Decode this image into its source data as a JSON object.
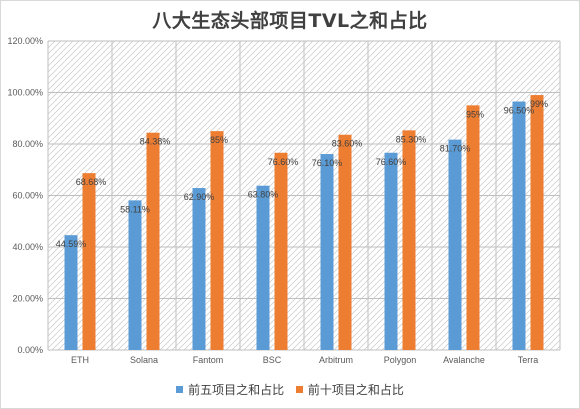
{
  "chart_data": {
    "type": "bar",
    "title": "八大生态头部项目TVL之和占比",
    "categories": [
      "ETH",
      "Solana",
      "Fantom",
      "BSC",
      "Arbitrum",
      "Polygon",
      "Avalanche",
      "Terra"
    ],
    "series": [
      {
        "name": "前五项目之和占比",
        "color": "#5b9bd5",
        "values": [
          44.59,
          58.11,
          62.9,
          63.8,
          76.1,
          76.6,
          81.7,
          96.5
        ],
        "labels": [
          "44.59%",
          "58.11%",
          "62.90%",
          "63.80%",
          "76.10%",
          "76.60%",
          "81.70%",
          "96.50%"
        ]
      },
      {
        "name": "前十项目之和占比",
        "color": "#ed7d31",
        "values": [
          68.68,
          84.38,
          85,
          76.6,
          83.6,
          85.3,
          95,
          99
        ],
        "labels": [
          "68.68%",
          "84.38%",
          "85%",
          "76.60%",
          "83.60%",
          "85.30%",
          "95%",
          "99%"
        ]
      }
    ],
    "yticks": [
      "0.00%",
      "20.00%",
      "40.00%",
      "60.00%",
      "80.00%",
      "100.00%",
      "120.00%"
    ],
    "ylim": [
      0,
      120
    ],
    "grid": true,
    "legend_position": "bottom"
  }
}
